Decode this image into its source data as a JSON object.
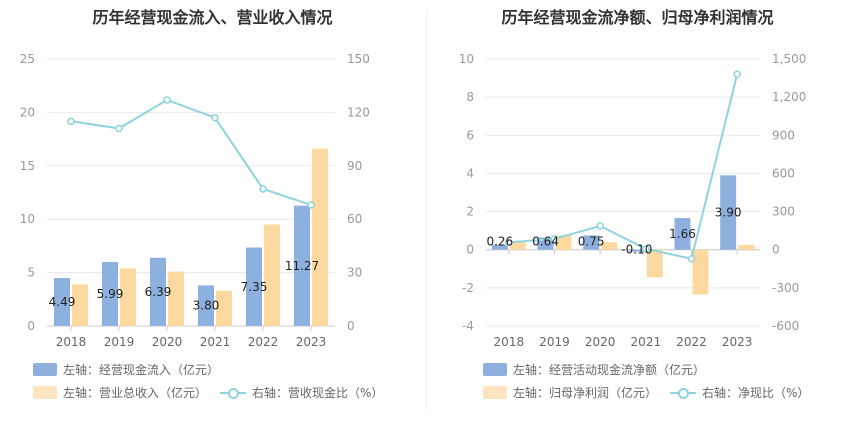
{
  "colors": {
    "bar1": "#8eb0df",
    "bar2": "#fdd9a0",
    "line": "#8fd3dc",
    "grid": "#e8e8e8"
  },
  "chart_data": [
    {
      "type": "bar",
      "title": "历年经营现金流入、营业收入情况",
      "categories": [
        "2018",
        "2019",
        "2020",
        "2021",
        "2022",
        "2023"
      ],
      "ylim_left": [
        0,
        25
      ],
      "yticks_left": [
        0,
        5,
        10,
        15,
        20,
        25
      ],
      "ylim_right": [
        0,
        150
      ],
      "yticks_right": [
        0,
        30,
        60,
        90,
        120,
        150
      ],
      "series": [
        {
          "name": "左轴：经营现金流入（亿元）",
          "axis": "left",
          "kind": "bar",
          "values": [
            4.49,
            5.99,
            6.39,
            3.8,
            7.35,
            11.27
          ],
          "labels": [
            "4.49",
            "5.99",
            "6.39",
            "3.80",
            "7.35",
            "11.27"
          ]
        },
        {
          "name": "左轴：营业总收入（亿元）",
          "axis": "left",
          "kind": "bar",
          "values": [
            3.9,
            5.4,
            5.1,
            3.3,
            9.5,
            16.6
          ]
        },
        {
          "name": "右轴：营收现金比（%）",
          "axis": "right",
          "kind": "line",
          "values": [
            115,
            111,
            127,
            117,
            77,
            68
          ]
        }
      ],
      "grid": true
    },
    {
      "type": "bar",
      "title": "历年经营现金流净额、归母净利润情况",
      "categories": [
        "2018",
        "2019",
        "2020",
        "2021",
        "2022",
        "2023"
      ],
      "ylim_left": [
        -4,
        10
      ],
      "yticks_left": [
        -4,
        -2,
        0,
        2,
        4,
        6,
        8,
        10
      ],
      "ylim_right": [
        -600,
        1500
      ],
      "yticks_right": [
        -600,
        -300,
        0,
        300,
        600,
        900,
        1200,
        1500
      ],
      "yticks_right_labels": [
        "-600",
        "-300",
        "0",
        "300",
        "600",
        "900",
        "1,200",
        "1,500"
      ],
      "series": [
        {
          "name": "左轴：经营活动现金流净额（亿元）",
          "axis": "left",
          "kind": "bar",
          "values": [
            0.26,
            0.64,
            0.75,
            -0.1,
            1.66,
            3.9
          ],
          "labels": [
            "0.26",
            "0.64",
            "0.75",
            "-0.10",
            "1.66",
            "3.90"
          ]
        },
        {
          "name": "左轴：归母净利润（亿元）",
          "axis": "left",
          "kind": "bar",
          "values": [
            0.45,
            0.75,
            0.4,
            -1.45,
            -2.35,
            0.25
          ]
        },
        {
          "name": "右轴：净现比（%）",
          "axis": "right",
          "kind": "line",
          "values": [
            58,
            85,
            187,
            7,
            -71,
            1380
          ]
        }
      ],
      "grid": true
    }
  ]
}
